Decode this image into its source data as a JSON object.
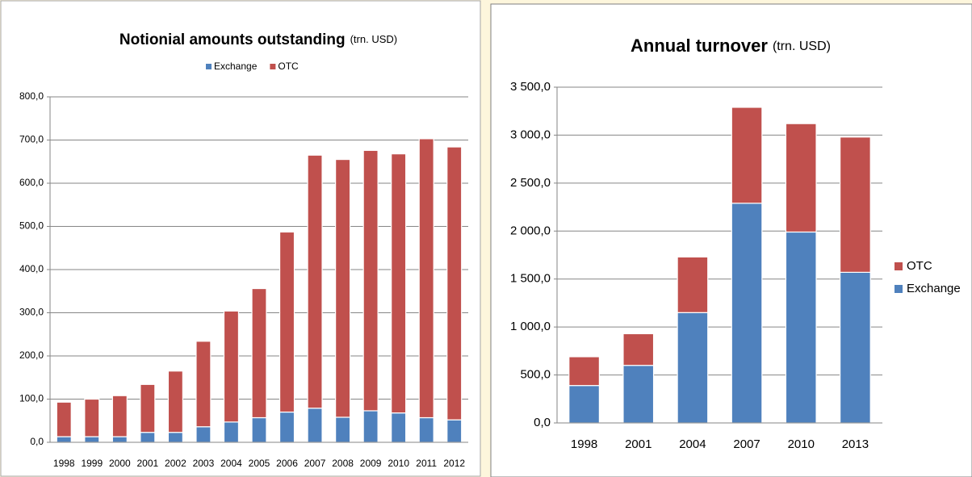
{
  "chart_data": [
    {
      "type": "stacked_bar",
      "title": "Notionial amounts outstanding",
      "subtitle": "(trn. USD)",
      "categories": [
        "1998",
        "1999",
        "2000",
        "2001",
        "2002",
        "2003",
        "2004",
        "2005",
        "2006",
        "2007",
        "2008",
        "2009",
        "2010",
        "2011",
        "2012"
      ],
      "series": [
        {
          "name": "Exchange",
          "color": "#4f81bd",
          "values": [
            13,
            13,
            13,
            23,
            23,
            36,
            47,
            57,
            70,
            79,
            58,
            73,
            68,
            57,
            52
          ]
        },
        {
          "name": "OTC",
          "color": "#c0504d",
          "values": [
            80,
            87,
            95,
            111,
            142,
            198,
            257,
            299,
            417,
            586,
            597,
            603,
            600,
            646,
            632
          ]
        }
      ],
      "ylim": [
        0,
        800
      ],
      "yticks": [
        {
          "value": 0,
          "label": "0,0"
        },
        {
          "value": 100,
          "label": "100,0"
        },
        {
          "value": 200,
          "label": "200,0"
        },
        {
          "value": 300,
          "label": "300,0"
        },
        {
          "value": 400,
          "label": "400,0"
        },
        {
          "value": 500,
          "label": "500,0"
        },
        {
          "value": 600,
          "label": "600,0"
        },
        {
          "value": 700,
          "label": "700,0"
        },
        {
          "value": 800,
          "label": "800,0"
        }
      ],
      "grid": true,
      "legend": "top"
    },
    {
      "type": "stacked_bar",
      "title": "Annual turnover",
      "subtitle": "(trn. USD)",
      "categories": [
        "1998",
        "2001",
        "2004",
        "2007",
        "2010",
        "2013"
      ],
      "series": [
        {
          "name": "Exchange",
          "color": "#4f81bd",
          "values": [
            390,
            600,
            1150,
            2290,
            1990,
            1570
          ]
        },
        {
          "name": "OTC",
          "color": "#c0504d",
          "values": [
            300,
            330,
            580,
            1000,
            1130,
            1410
          ]
        }
      ],
      "ylim": [
        0,
        3500
      ],
      "yticks": [
        {
          "value": 0,
          "label": "0,0"
        },
        {
          "value": 500,
          "label": "500,0"
        },
        {
          "value": 1000,
          "label": "1 000,0"
        },
        {
          "value": 1500,
          "label": "1 500,0"
        },
        {
          "value": 2000,
          "label": "2 000,0"
        },
        {
          "value": 2500,
          "label": "2 500,0"
        },
        {
          "value": 3000,
          "label": "3 000,0"
        },
        {
          "value": 3500,
          "label": "3 500,0"
        }
      ],
      "grid": true,
      "legend": "right"
    }
  ]
}
